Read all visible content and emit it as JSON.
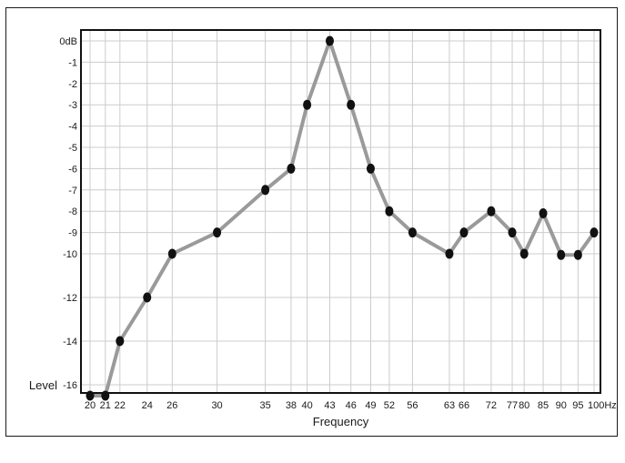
{
  "chart_data": {
    "type": "line",
    "xlabel": "Frequency",
    "ylabel": "Level",
    "x_unit": "Hz",
    "y_unit": "dB",
    "x": [
      20,
      21,
      22,
      24,
      26,
      30,
      35,
      38,
      40,
      43,
      46,
      49,
      52,
      56,
      63,
      66,
      72,
      77,
      80,
      85,
      90,
      95,
      100
    ],
    "x_tick_labels": [
      "20",
      "21",
      "22",
      "24",
      "26",
      "30",
      "35",
      "38",
      "40",
      "43",
      "46",
      "49",
      "52",
      "56",
      "63",
      "66",
      "72",
      "77",
      "80",
      "85",
      "90",
      "95",
      "100Hz"
    ],
    "y_tick_values": [
      0,
      -1,
      -2,
      -3,
      -4,
      -5,
      -6,
      -7,
      -8,
      -9,
      -10,
      -12,
      -14,
      -16
    ],
    "y_tick_labels": [
      "0dB",
      "-1",
      "-2",
      "-3",
      "-4",
      "-5",
      "-6",
      "-7",
      "-8",
      "-9",
      "-10",
      "-12",
      "-14",
      "-16"
    ],
    "series": [
      {
        "values": [
          -16.5,
          -16.5,
          -14,
          -12,
          -10,
          -9,
          -7,
          -6,
          -3,
          0,
          -3,
          -6,
          -8,
          -9,
          -10,
          -9,
          -8,
          -9,
          -10,
          -8.1,
          -10.05,
          -10.05,
          -9
        ]
      }
    ],
    "grid": true,
    "colors": {
      "line": "#9a9a9a",
      "marker": "#111111",
      "grid": "#cccccc",
      "frame": "#111111"
    }
  }
}
